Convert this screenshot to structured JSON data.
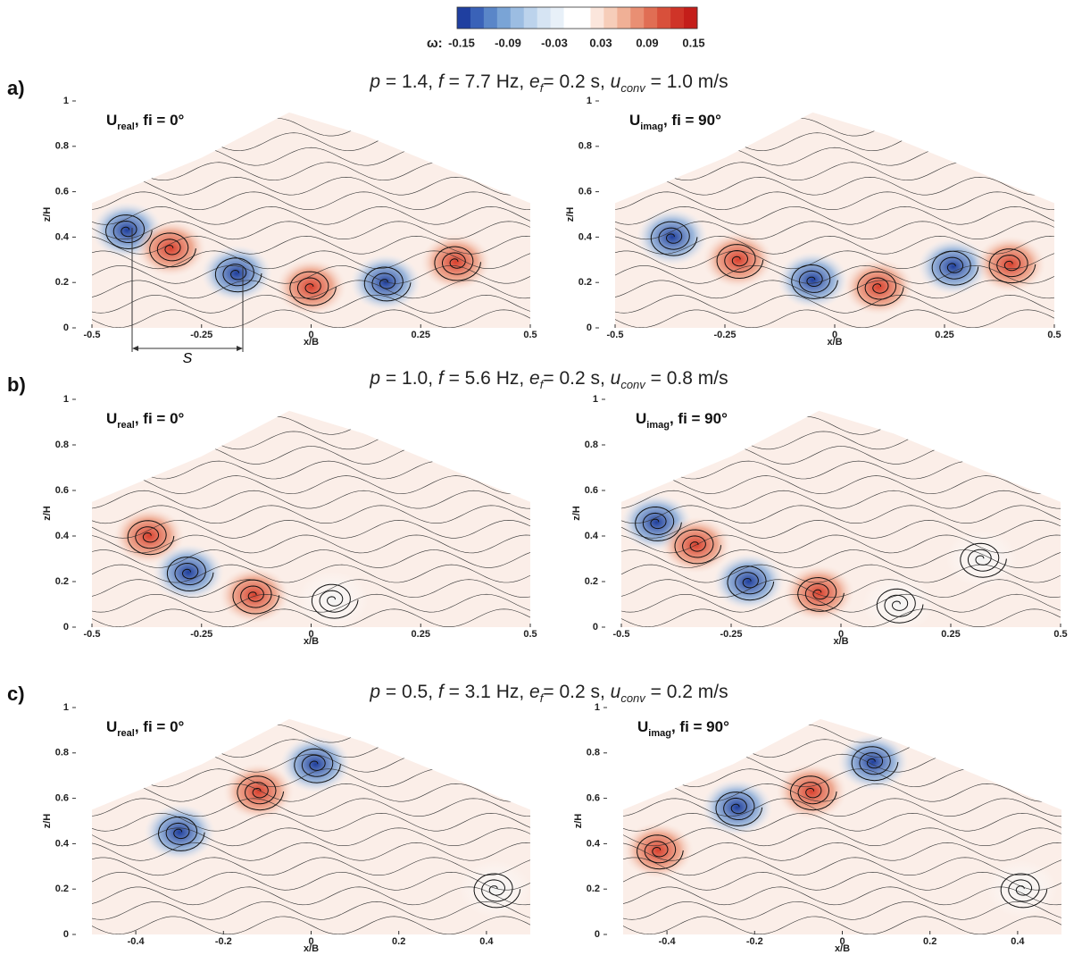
{
  "colorbar": {
    "symbol": "ω:",
    "ticks": [
      -0.15,
      -0.09,
      -0.03,
      0.03,
      0.09,
      0.15
    ],
    "colors": [
      "#1f3fa0",
      "#3a62b8",
      "#5a86c8",
      "#7aa4d6",
      "#9cbde2",
      "#bcd3ec",
      "#d6e4f3",
      "#e8f0f8",
      "#ffffff",
      "#ffffff",
      "#fbe6dc",
      "#f6cdb9",
      "#f0b096",
      "#e98f73",
      "#e06e54",
      "#d8503b",
      "#cf3428",
      "#c41e1a"
    ]
  },
  "rows": [
    {
      "label": "a)",
      "title": [
        {
          "text": "p",
          "style": "italic"
        },
        {
          "text": " = 1.4, "
        },
        {
          "text": "f",
          "style": "italic"
        },
        {
          "text": " = 7.7 Hz, "
        },
        {
          "text": "e",
          "style": "italic"
        },
        {
          "text": "f",
          "style": "sub"
        },
        {
          "text": "= 0.2 s, "
        },
        {
          "text": "u",
          "style": "italic"
        },
        {
          "text": "conv",
          "style": "sub"
        },
        {
          "text": " = 1.0 m/s"
        }
      ],
      "panels": [
        {
          "label": {
            "main": "U",
            "sub": "real",
            "rest": ", fi = 0°"
          },
          "xlabel": "x/B",
          "ylabel": "z/H",
          "xlim": [
            -0.5,
            0.5
          ],
          "ylim": [
            0,
            1
          ],
          "xticks": [
            -0.5,
            -0.25,
            0,
            0.25,
            0.5
          ],
          "yticks": [
            0,
            0.2,
            0.4,
            0.6,
            0.8,
            1
          ],
          "annotation": "S"
        },
        {
          "label": {
            "main": "U",
            "sub": "imag",
            "rest": ", fi = 90°"
          },
          "xlabel": "x/B",
          "ylabel": "z/H",
          "xlim": [
            -0.5,
            0.5
          ],
          "ylim": [
            0,
            1
          ],
          "xticks": [
            -0.5,
            -0.25,
            0,
            0.25,
            0.5
          ],
          "yticks": [
            0,
            0.2,
            0.4,
            0.6,
            0.8,
            1
          ]
        }
      ]
    },
    {
      "label": "b)",
      "title": [
        {
          "text": "p",
          "style": "italic"
        },
        {
          "text": " = 1.0, "
        },
        {
          "text": "f",
          "style": "italic"
        },
        {
          "text": " = 5.6 Hz, "
        },
        {
          "text": "e",
          "style": "italic"
        },
        {
          "text": "f",
          "style": "sub"
        },
        {
          "text": "= 0.2 s, "
        },
        {
          "text": "u",
          "style": "italic"
        },
        {
          "text": "conv",
          "style": "sub"
        },
        {
          "text": " = 0.8 m/s"
        }
      ],
      "panels": [
        {
          "label": {
            "main": "U",
            "sub": "real",
            "rest": ", fi = 0°"
          },
          "xlabel": "x/B",
          "ylabel": "z/H",
          "xlim": [
            -0.5,
            0.5
          ],
          "ylim": [
            0,
            1
          ],
          "xticks": [
            -0.5,
            -0.25,
            0,
            0.25,
            0.5
          ],
          "yticks": [
            0,
            0.2,
            0.4,
            0.6,
            0.8,
            1
          ]
        },
        {
          "label": {
            "main": "U",
            "sub": "imag",
            "rest": ", fi = 90°"
          },
          "xlabel": "x/B",
          "ylabel": "z/H",
          "xlim": [
            -0.5,
            0.5
          ],
          "ylim": [
            0,
            1
          ],
          "xticks": [
            -0.5,
            -0.25,
            0,
            0.25,
            0.5
          ],
          "yticks": [
            0,
            0.2,
            0.4,
            0.6,
            0.8,
            1
          ]
        }
      ]
    },
    {
      "label": "c)",
      "title": [
        {
          "text": "p",
          "style": "italic"
        },
        {
          "text": " = 0.5, "
        },
        {
          "text": "f",
          "style": "italic"
        },
        {
          "text": " = 3.1 Hz, "
        },
        {
          "text": "e",
          "style": "italic"
        },
        {
          "text": "f",
          "style": "sub"
        },
        {
          "text": "= 0.2 s, "
        },
        {
          "text": "u",
          "style": "italic"
        },
        {
          "text": "conv",
          "style": "sub"
        },
        {
          "text": " = 0.2 m/s"
        }
      ],
      "panels": [
        {
          "label": {
            "main": "U",
            "sub": "real",
            "rest": ", fi = 0°"
          },
          "xlabel": "x/B",
          "ylabel": "z/H",
          "xlim": [
            -0.5,
            0.5
          ],
          "ylim": [
            0,
            1
          ],
          "xticks": [
            -0.4,
            -0.2,
            0,
            0.2,
            0.4
          ],
          "yticks": [
            0,
            0.2,
            0.4,
            0.6,
            0.8,
            1
          ]
        },
        {
          "label": {
            "main": "U",
            "sub": "imag",
            "rest": ", fi = 90°"
          },
          "xlabel": "x/B",
          "ylabel": "z/H",
          "xlim": [
            -0.5,
            0.5
          ],
          "ylim": [
            0,
            1
          ],
          "xticks": [
            -0.4,
            -0.2,
            0,
            0.2,
            0.4
          ],
          "yticks": [
            0,
            0.2,
            0.4,
            0.6,
            0.8,
            1
          ]
        }
      ]
    }
  ]
}
